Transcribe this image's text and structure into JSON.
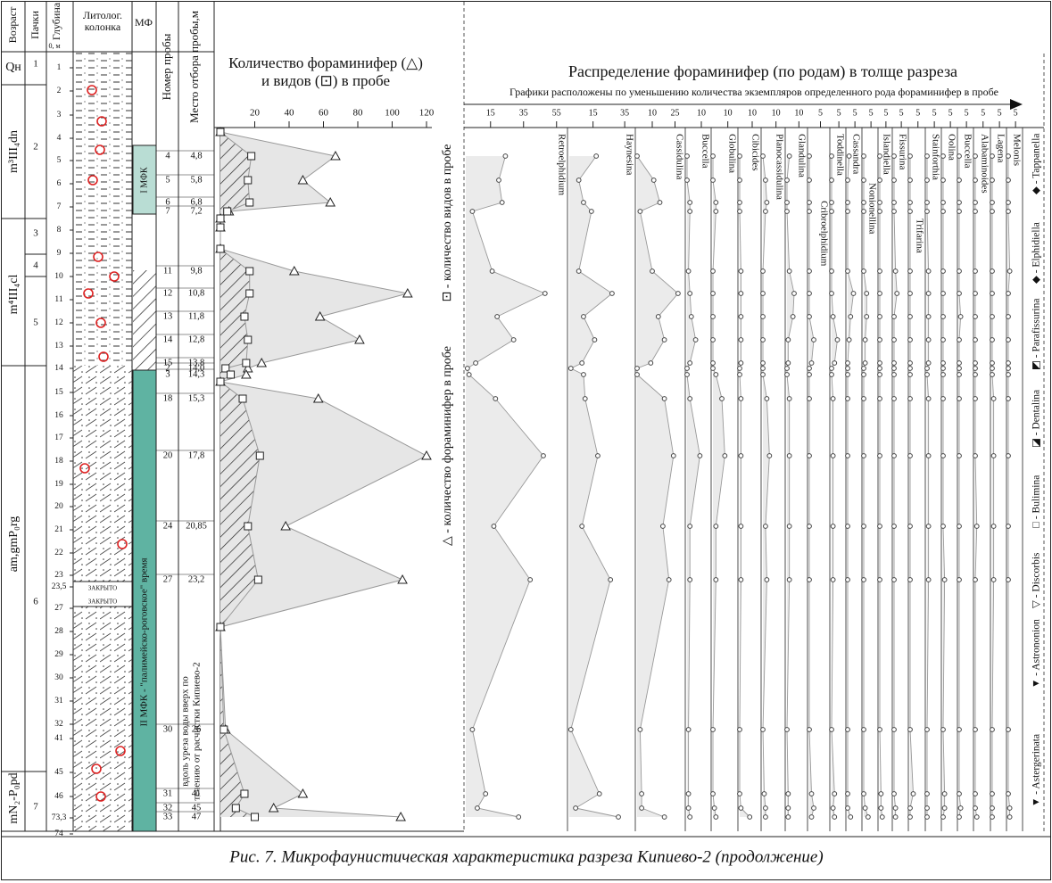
{
  "header": {
    "age": "Возраст",
    "packs": "Пачки",
    "depth": "Глубина",
    "depth_unit": "0, м",
    "lithology": [
      "Литолог.",
      "колонка"
    ],
    "mf": "МФ",
    "sample_no": "Номер пробы",
    "sample_place": "Место отбора пробы,м"
  },
  "ages": [
    "Qн",
    "m³III₄dn",
    "m⁴III₄cl",
    "am,gmP₀rg",
    "mN₂-P₀pd"
  ],
  "packs": [
    "1",
    "2",
    "3",
    "4",
    "5",
    "6",
    "7"
  ],
  "depths": [
    "1",
    "2",
    "3",
    "4",
    "5",
    "6",
    "7",
    "8",
    "9",
    "10",
    "11",
    "12",
    "13",
    "14",
    "15",
    "16",
    "17",
    "18",
    "19",
    "20",
    "21",
    "22",
    "23",
    "23,5",
    "27",
    "28",
    "29",
    "30",
    "31",
    "32",
    "41",
    "45",
    "46",
    "73,3",
    "74"
  ],
  "lithology_notes": [
    "ЗАКРЫТО",
    "ЗАКРЫТО"
  ],
  "mf": [
    "I МФК",
    "II МФК - \"палимейско-роговское\" время"
  ],
  "sample_places": [
    null,
    "4,8",
    "5,8",
    "6,8",
    "7,2",
    null,
    null,
    null,
    "9,8",
    "10,8",
    "11,8",
    "12,8",
    "13,8",
    "14,0",
    "14,3",
    null,
    "15,3",
    "17,8",
    "20,85",
    "23,2",
    null,
    "26",
    "41",
    "45",
    "47"
  ],
  "field_note": [
    "вдоль уреза воды вверх по",
    "течению от расчистки Кипиево-2"
  ],
  "chart_data": [
    {
      "type": "line",
      "title": "Количество фораминифер (△)",
      "subtitle": "и видов (⊡) в пробе",
      "categories": [
        null,
        "4",
        "5",
        "6",
        "7",
        null,
        null,
        null,
        "11",
        "12",
        "13",
        "14",
        "15",
        "2",
        "3",
        null,
        "18",
        "20",
        "24",
        "27",
        null,
        "30",
        "31",
        "32",
        "33"
      ],
      "series": [
        {
          "name": "△ - количество фораминифер в пробе",
          "color": "#e6e6e6",
          "values": [
            0,
            67,
            48,
            64,
            5,
            0,
            0,
            0,
            43,
            109,
            58,
            81,
            24,
            16,
            15,
            0,
            57,
            120,
            38,
            106,
            0,
            3,
            48,
            31,
            105
          ]
        },
        {
          "name": "⊡ - количество видов в пробе",
          "color": "#333333",
          "values": [
            0,
            18,
            16,
            17,
            4,
            0,
            0,
            0,
            17,
            17,
            14,
            16,
            15,
            3,
            6,
            0,
            13,
            23,
            16,
            22,
            0,
            2,
            14,
            9,
            20
          ]
        }
      ],
      "xlim": [
        0,
        120
      ],
      "xticks": [
        20,
        40,
        60,
        80,
        100,
        120
      ]
    },
    {
      "type": "profiles",
      "title": "Распределение фораминифер (по родам) в толще разреза",
      "subtitle": "Графики расположены по уменьшению количества экземпляров определенного рода фораминифер в пробе",
      "series": [
        {
          "name": "Retroelphidium",
          "xlim": [
            0,
            60
          ],
          "xticks": [
            15,
            35,
            55
          ],
          "values": [
            24,
            20,
            22,
            4,
            16,
            48,
            19,
            29,
            6,
            1,
            2,
            18,
            47,
            17,
            39,
            4,
            12,
            7,
            32
          ]
        },
        {
          "name": "Haynesina",
          "xlim": [
            0,
            40
          ],
          "xticks": [
            15,
            35
          ],
          "values": [
            17,
            6,
            9,
            14,
            6,
            27,
            9,
            16,
            8,
            1,
            9,
            10,
            18,
            8,
            26,
            1,
            19,
            4,
            31
          ]
        },
        {
          "name": "Cassidulina",
          "xlim": [
            0,
            30
          ],
          "xticks": [
            10,
            25
          ],
          "values": [
            0,
            11,
            15,
            2,
            10,
            27,
            14,
            18,
            9,
            0,
            0,
            18,
            24,
            17,
            21,
            2,
            3,
            3,
            18
          ]
        },
        {
          "name": "Buccella",
          "xlim": [
            0,
            15
          ],
          "xticks": [
            10
          ],
          "values": [
            0,
            0,
            2,
            2,
            1,
            2,
            3,
            6,
            2,
            0,
            0,
            2,
            9,
            2,
            2,
            1,
            1,
            1,
            2
          ]
        },
        {
          "name": "Globulina",
          "xlim": [
            0,
            15
          ],
          "xticks": [
            10
          ],
          "values": [
            0,
            0,
            2,
            2,
            0,
            0,
            0,
            0,
            0,
            0,
            2,
            6,
            8,
            2,
            2,
            0,
            0,
            1,
            2
          ]
        },
        {
          "name": "Cibicides",
          "xlim": [
            0,
            15
          ],
          "xticks": [
            10
          ],
          "values": [
            0,
            0,
            0,
            0,
            1,
            1,
            1,
            1,
            1,
            0,
            0,
            1,
            1,
            1,
            1,
            0,
            0,
            1,
            8
          ]
        },
        {
          "name": "Planocassidulina",
          "xlim": [
            0,
            15
          ],
          "xticks": [
            10
          ],
          "values": [
            0,
            2,
            3,
            2,
            0,
            0,
            0,
            0,
            0,
            0,
            0,
            3,
            5,
            2,
            3,
            0,
            1,
            2,
            2
          ]
        },
        {
          "name": "Glandulina",
          "xlim": [
            0,
            15
          ],
          "xticks": [
            10
          ],
          "values": [
            2,
            0,
            0,
            0,
            2,
            6,
            5,
            1,
            1,
            0,
            0,
            2,
            2,
            2,
            2,
            0,
            1,
            1,
            1
          ]
        },
        {
          "name": "Cribroelphidium",
          "xlim": [
            0,
            8
          ],
          "xticks": [
            5
          ],
          "values": [
            0,
            0,
            0,
            0,
            0,
            0,
            0,
            2,
            1,
            0,
            0,
            0,
            0,
            0,
            0,
            0,
            1,
            2,
            1
          ]
        },
        {
          "name": "Toddinella",
          "xlim": [
            0,
            8
          ],
          "xticks": [
            5
          ],
          "values": [
            0,
            0,
            0,
            0,
            0,
            0,
            1,
            4,
            2,
            0,
            0,
            1,
            1,
            1,
            1,
            0,
            2,
            1,
            2
          ]
        },
        {
          "name": "Cassandra",
          "xlim": [
            0,
            8
          ],
          "xticks": [
            5
          ],
          "values": [
            1,
            0,
            0,
            0,
            0,
            4,
            2,
            1,
            0,
            0,
            0,
            0,
            0,
            0,
            0,
            0,
            0,
            0,
            2
          ]
        },
        {
          "name": "Nonionellina",
          "xlim": [
            0,
            8
          ],
          "xticks": [
            5
          ],
          "values": [
            0,
            0,
            0,
            0,
            0,
            2,
            2,
            1,
            1,
            0,
            0,
            0,
            0,
            0,
            0,
            0,
            0,
            1,
            3
          ]
        },
        {
          "name": "Islandiella",
          "xlim": [
            0,
            8
          ],
          "xticks": [
            5
          ],
          "values": [
            0,
            0,
            0,
            0,
            0,
            0,
            0,
            0,
            0,
            0,
            0,
            0,
            0,
            0,
            0,
            0,
            1,
            1,
            2
          ]
        },
        {
          "name": "Fissurina",
          "xlim": [
            0,
            8
          ],
          "xticks": [
            5
          ],
          "values": [
            0,
            0,
            0,
            0,
            1,
            2,
            0,
            0,
            0,
            0,
            0,
            0,
            0,
            0,
            0,
            0,
            0,
            1,
            1
          ]
        },
        {
          "name": "Trifarina",
          "xlim": [
            0,
            8
          ],
          "xticks": [
            5
          ],
          "values": [
            0,
            0,
            0,
            0,
            0,
            0,
            0,
            0,
            0,
            0,
            0,
            0,
            0,
            0,
            0,
            0,
            2,
            0,
            0
          ]
        },
        {
          "name": "Stainforthia",
          "xlim": [
            0,
            8
          ],
          "xticks": [
            5
          ],
          "values": [
            0,
            0,
            0,
            0,
            1,
            1,
            1,
            1,
            1,
            0,
            0,
            1,
            1,
            1,
            1,
            0,
            0,
            0,
            0
          ]
        },
        {
          "name": "Oolina",
          "xlim": [
            0,
            8
          ],
          "xticks": [
            5
          ],
          "values": [
            0,
            0,
            0,
            0,
            0,
            0,
            0,
            0,
            0,
            0,
            0,
            0,
            0,
            0,
            1,
            0,
            1,
            1,
            0
          ]
        },
        {
          "name": "Buccella",
          "xlim": [
            0,
            8
          ],
          "xticks": [
            5
          ],
          "values": [
            0,
            0,
            0,
            0,
            0,
            0,
            1,
            0,
            0,
            0,
            0,
            0,
            0,
            0,
            0,
            0,
            0,
            1,
            0
          ]
        },
        {
          "name": "Alabaminoides",
          "xlim": [
            0,
            8
          ],
          "xticks": [
            5
          ],
          "values": [
            0,
            0,
            0,
            0,
            0,
            0,
            0,
            0,
            0,
            0,
            0,
            0,
            0,
            1,
            0,
            0,
            0,
            0,
            1
          ]
        },
        {
          "name": "Lagena",
          "xlim": [
            0,
            8
          ],
          "xticks": [
            5
          ],
          "values": [
            0,
            0,
            0,
            0,
            0,
            0,
            0,
            0,
            0,
            0,
            0,
            1,
            1,
            1,
            1,
            0,
            0,
            0,
            0
          ]
        },
        {
          "name": "Melonis",
          "xlim": [
            0,
            8
          ],
          "xticks": [
            5
          ],
          "values": [
            0,
            0,
            0,
            0,
            1,
            0,
            0,
            0,
            0,
            0,
            0,
            0,
            0,
            0,
            0,
            0,
            0,
            1,
            1
          ]
        }
      ],
      "symbol_legend": [
        "▼ - Astergerinata",
        "▼ - Astrononion",
        "▽ - Discorbis",
        "□ - Bulimina",
        "◪ - Dentalina",
        "◩ - Parafissurina",
        "◆ - Elphidiella",
        "◆ - Tappanella"
      ]
    }
  ],
  "caption": "Рис. 7. Микрофаунистическая характеристика разреза Кипиево-2 (продолжение)"
}
